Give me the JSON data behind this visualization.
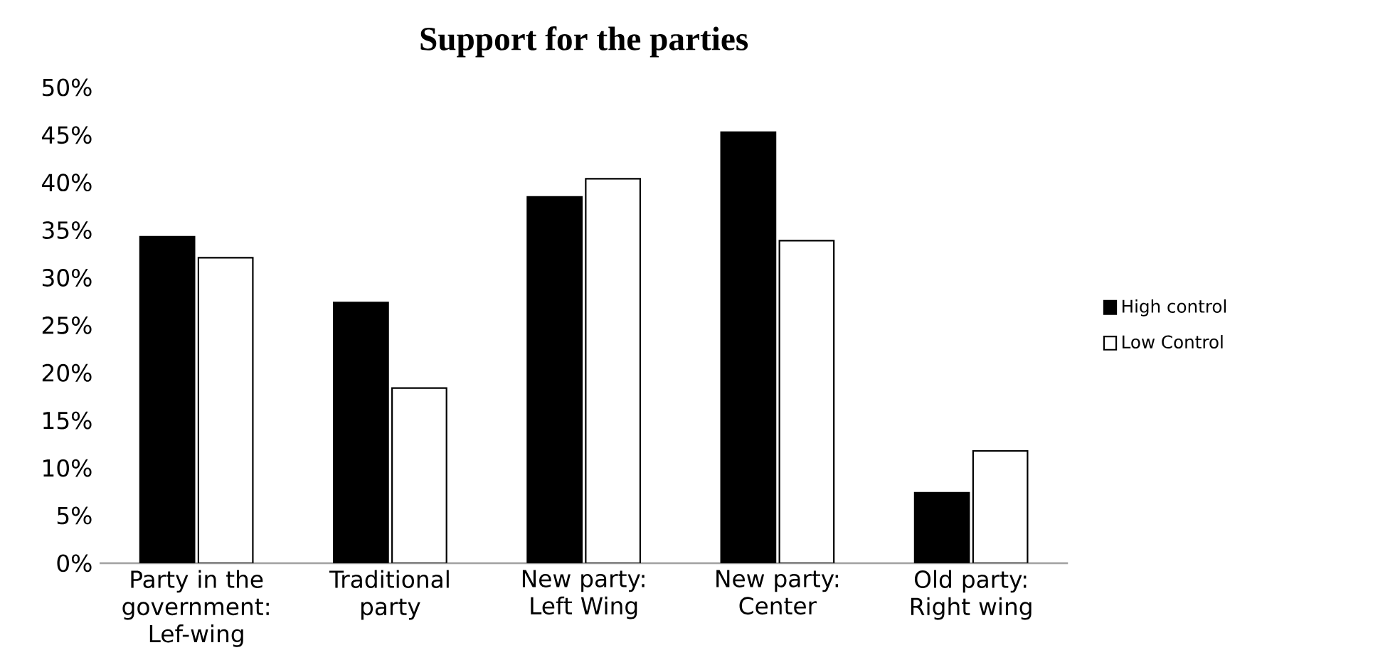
{
  "chart_data": {
    "type": "bar",
    "title": "Support for the parties",
    "categories": [
      "Party in the government: Lef-wing",
      "Traditional party",
      "New party: Left Wing",
      "New party: Center",
      "Old party: Right wing"
    ],
    "series": [
      {
        "name": "High control",
        "color": "#000000",
        "values": [
          34.3,
          27.4,
          38.5,
          45.3,
          7.4
        ]
      },
      {
        "name": "Low Control",
        "color": "#ffffff",
        "values": [
          32.1,
          18.4,
          40.4,
          33.9,
          11.8
        ]
      }
    ],
    "ylim": [
      0,
      50
    ],
    "yticks": [
      {
        "value": 0,
        "label": "0%"
      },
      {
        "value": 5,
        "label": "5%"
      },
      {
        "value": 10,
        "label": "10%"
      },
      {
        "value": 15,
        "label": "15%"
      },
      {
        "value": 20,
        "label": "20%"
      },
      {
        "value": 25,
        "label": "25%"
      },
      {
        "value": 30,
        "label": "30%"
      },
      {
        "value": 35,
        "label": "35%"
      },
      {
        "value": 40,
        "label": "40%"
      },
      {
        "value": 45,
        "label": "45%"
      },
      {
        "value": 50,
        "label": "50%"
      }
    ],
    "legend": "right"
  }
}
